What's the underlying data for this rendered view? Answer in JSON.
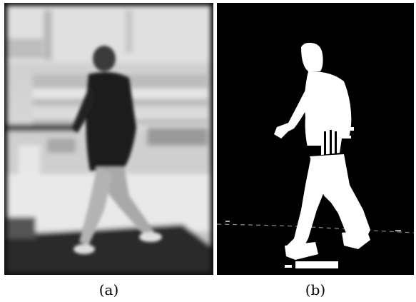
{
  "figure": {
    "panel_a": {
      "caption": "(a)",
      "description_icon": "grayscale-photo-walking-person"
    },
    "panel_b": {
      "caption": "(b)",
      "description_icon": "binary-silhouette-mask"
    }
  }
}
